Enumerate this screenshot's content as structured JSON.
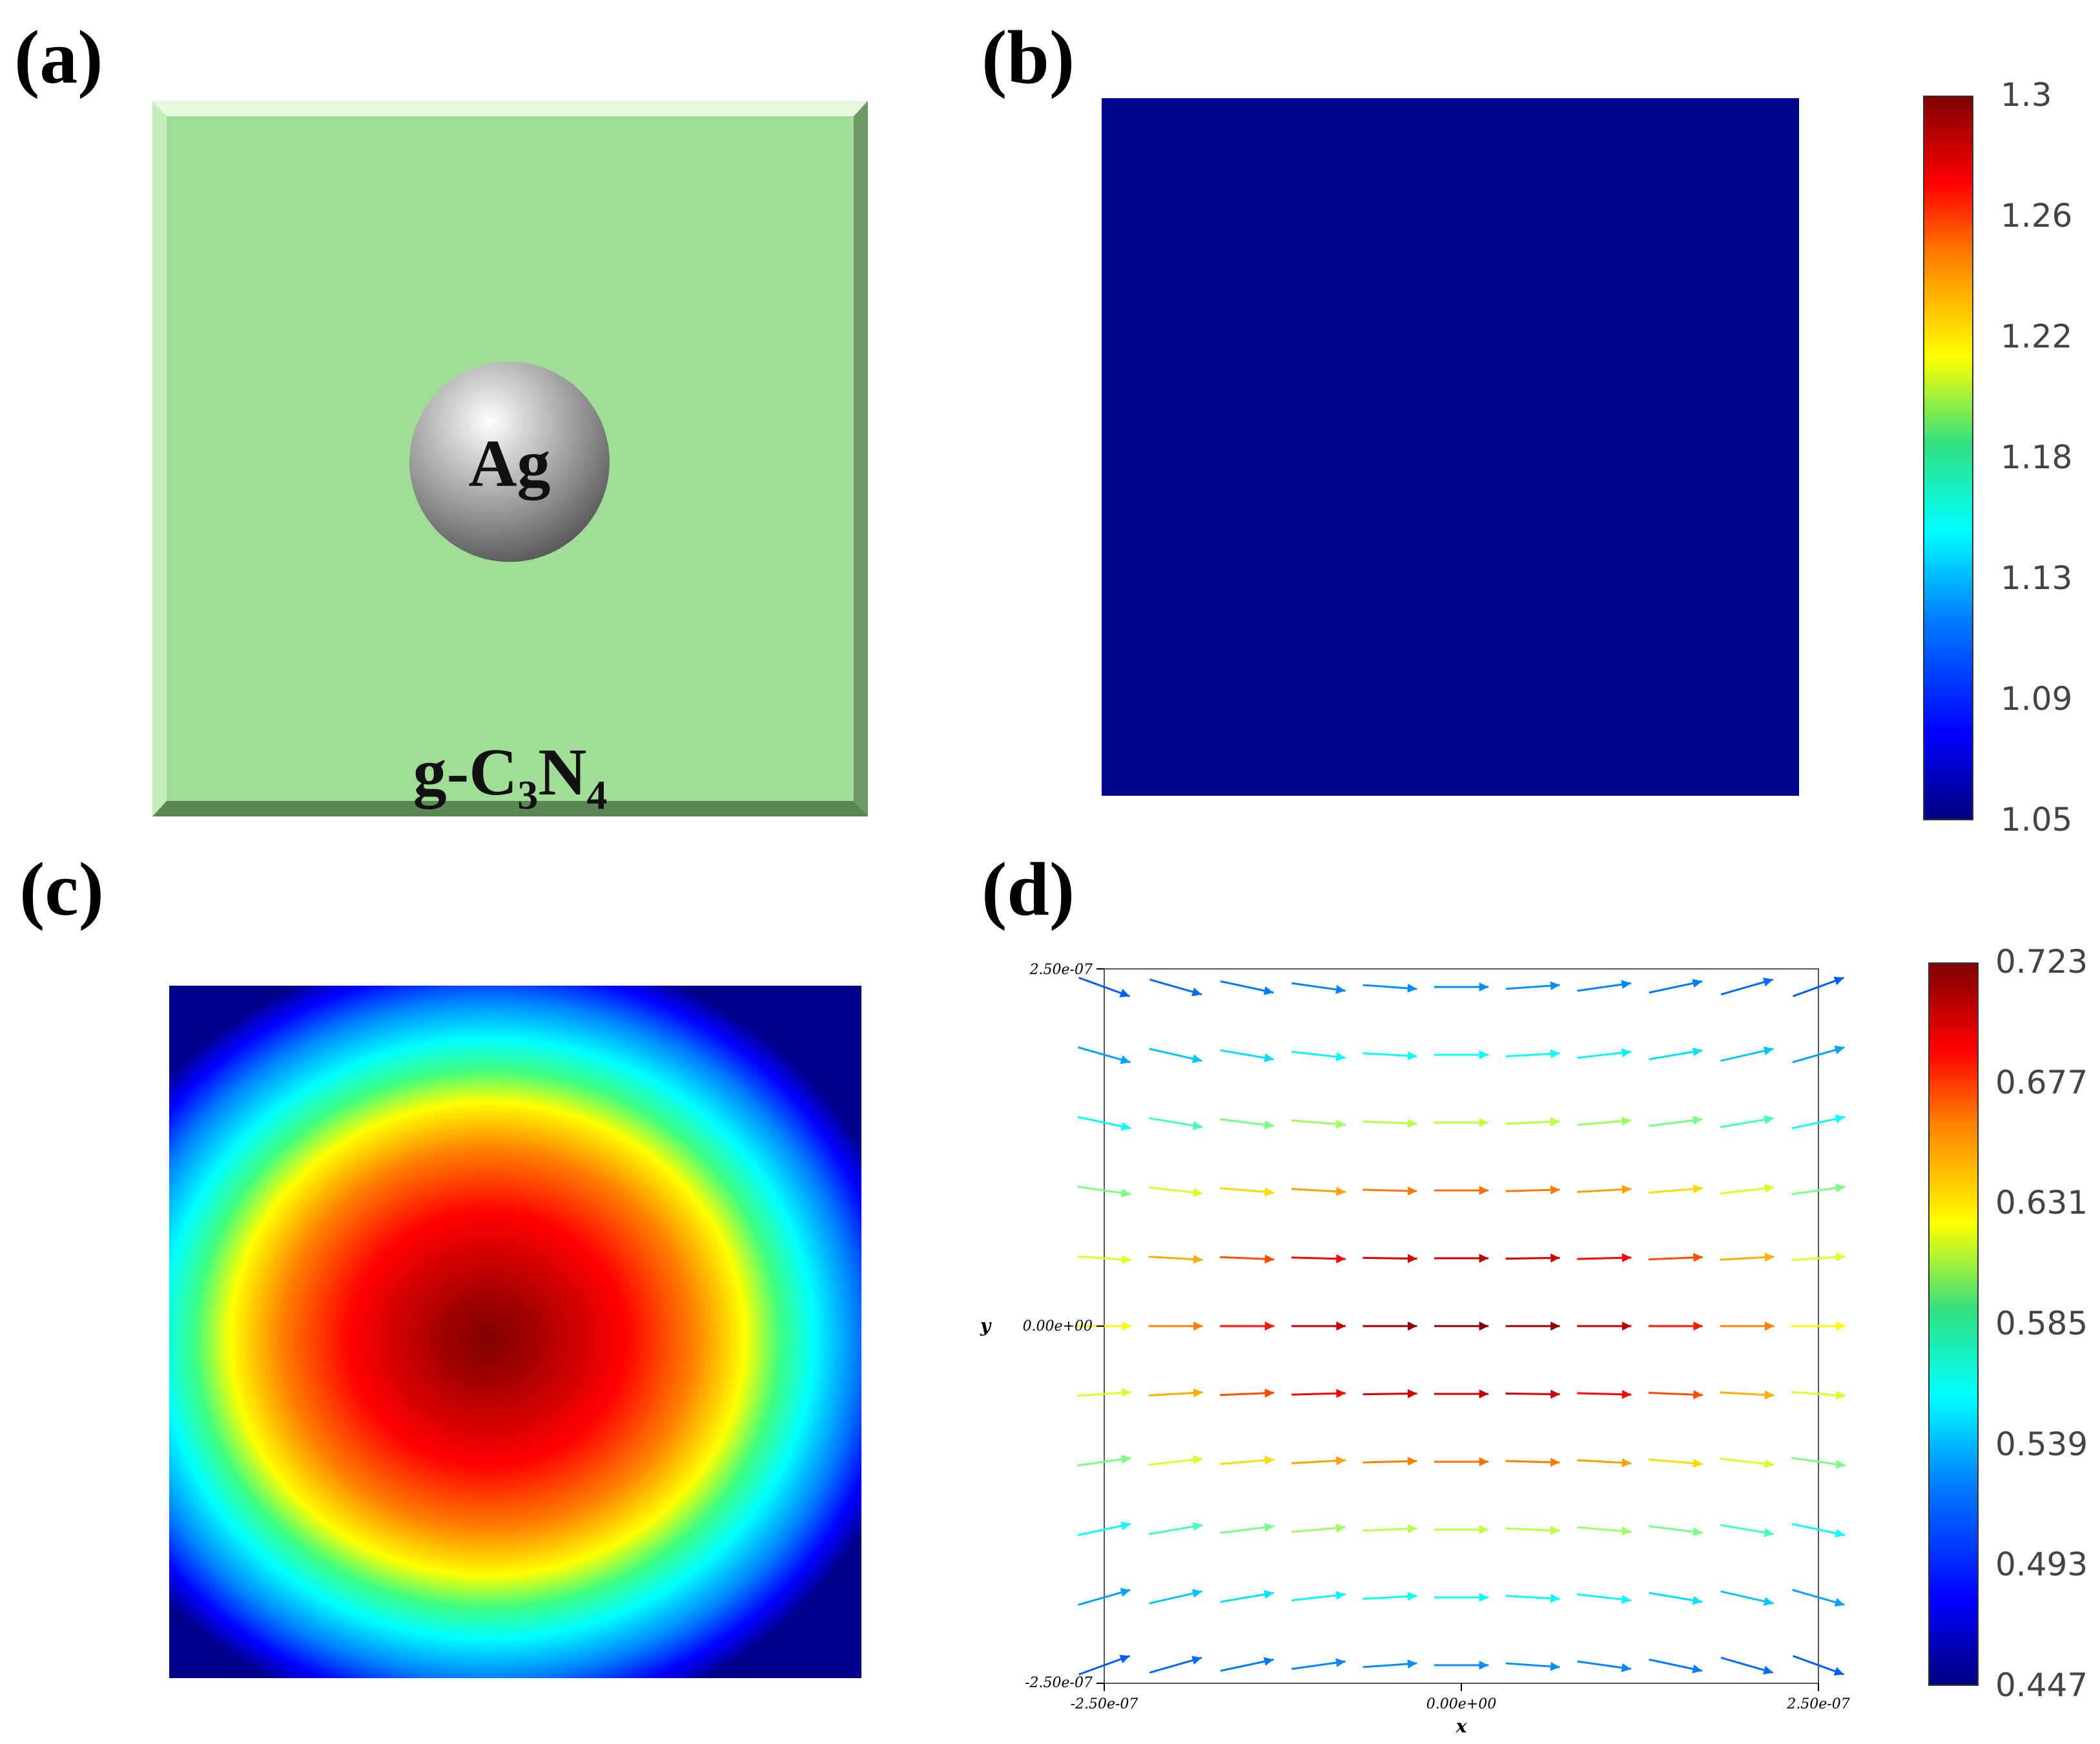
{
  "panels": {
    "a": {
      "label": "(a)",
      "sphere_label": "Ag",
      "substrate_label_parts": [
        "g-C",
        "3",
        "N",
        "4"
      ],
      "colors": {
        "plate": "#a2dd98",
        "sphere": "#9a9a9a"
      }
    },
    "b": {
      "label": "(b)",
      "field_color": "#01058b",
      "colorbar_ticks": [
        "1.3",
        "1.26",
        "1.22",
        "1.18",
        "1.13",
        "1.09",
        "1.05"
      ]
    },
    "c": {
      "label": "(c)"
    },
    "d": {
      "label": "(d)",
      "x_axis_label": "x",
      "y_axis_label": "y",
      "x_ticks": [
        "-2.50e-07",
        "0.00e+00",
        "2.50e-07"
      ],
      "y_ticks": [
        "2.50e-07",
        "0.00e+00",
        "-2.50e-07"
      ],
      "colorbar_ticks": [
        "0.723",
        "0.677",
        "0.631",
        "0.585",
        "0.539",
        "0.493",
        "0.447"
      ],
      "vector_field": {
        "rows": 11,
        "cols": 11,
        "min_magnitude": 0.447,
        "max_magnitude": 0.723
      }
    }
  }
}
